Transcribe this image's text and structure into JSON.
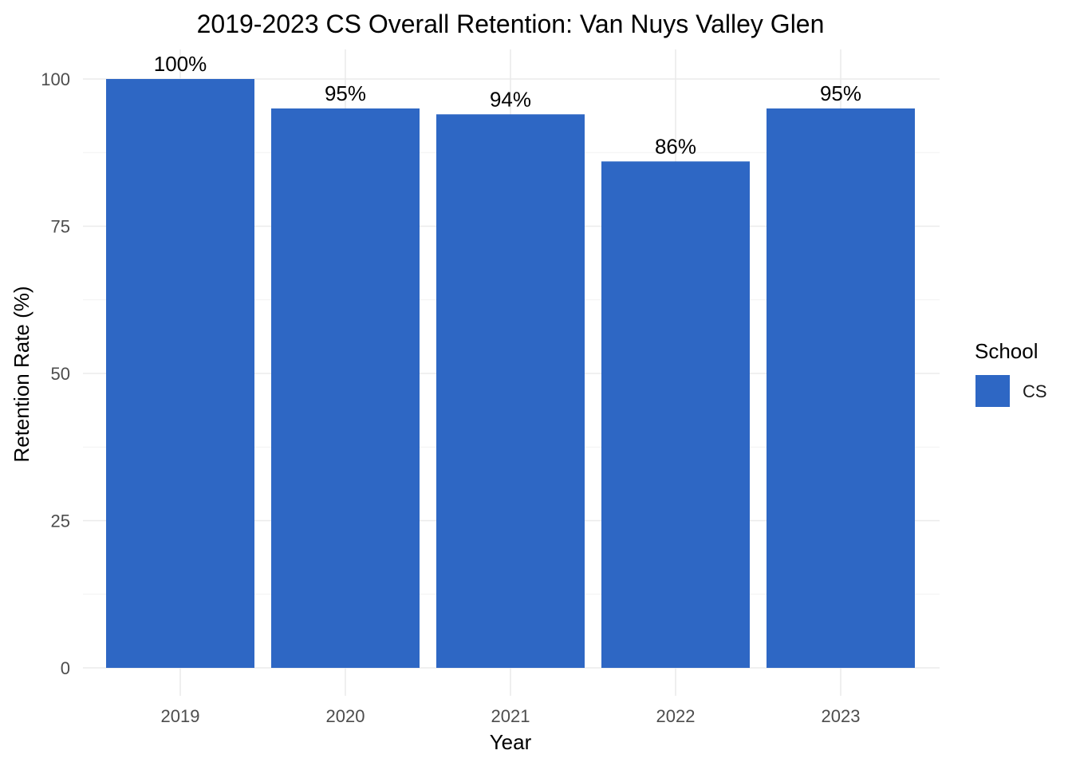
{
  "chart_data": {
    "type": "bar",
    "title": "2019-2023 CS Overall Retention: Van Nuys Valley Glen",
    "xlabel": "Year",
    "ylabel": "Retention Rate (%)",
    "categories": [
      "2019",
      "2020",
      "2021",
      "2022",
      "2023"
    ],
    "series": [
      {
        "name": "CS",
        "values": [
          100,
          95,
          94,
          86,
          95
        ],
        "labels": [
          "100%",
          "95%",
          "94%",
          "86%",
          "95%"
        ],
        "color": "#2e67c4"
      }
    ],
    "ylim": [
      0,
      100
    ],
    "yticks": [
      0,
      25,
      50,
      75,
      100
    ],
    "grid": true,
    "legend": {
      "title": "School",
      "position": "right"
    }
  }
}
